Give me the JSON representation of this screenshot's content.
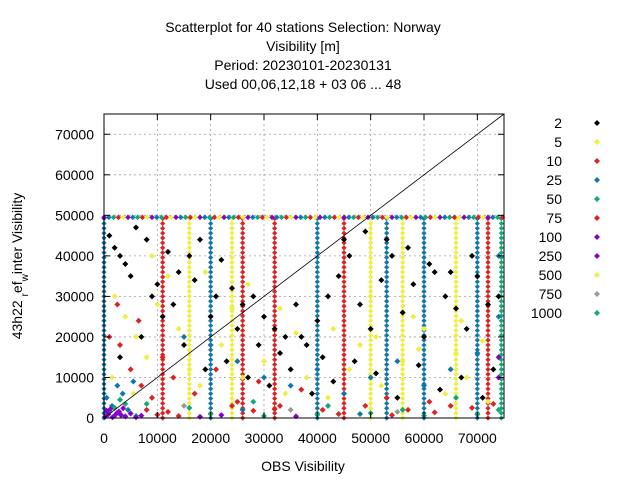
{
  "chart_data": {
    "type": "scatter",
    "title_lines": [
      "Scatterplot for   40 stations Selection: Norway",
      "Visibility [m]",
      "Period: 20230101-20230131",
      "Used  00,06,12,18  + 03 06 ... 48"
    ],
    "xlabel": "OBS Visibility",
    "ylabel": "43h22 ref_winter Visibility",
    "ylabel_parts": {
      "pre": "43h22 ",
      "sub1": "r",
      "mid": "ef",
      "sub2": "w",
      "post": "inter Visibility"
    },
    "xlim": [
      0,
      75000
    ],
    "ylim": [
      0,
      75000
    ],
    "xticks": [
      0,
      10000,
      20000,
      30000,
      40000,
      50000,
      60000,
      70000
    ],
    "yticks": [
      0,
      10000,
      20000,
      30000,
      40000,
      50000,
      60000,
      70000
    ],
    "grid": true,
    "diagonal": true,
    "legend_position": "right",
    "series": [
      {
        "name": "2",
        "color": "#000000"
      },
      {
        "name": "5",
        "color": "#eeee44"
      },
      {
        "name": "10",
        "color": "#dd2222"
      },
      {
        "name": "25",
        "color": "#1177aa"
      },
      {
        "name": "50",
        "color": "#11aa77"
      },
      {
        "name": "75",
        "color": "#dd2222"
      },
      {
        "name": "100",
        "color": "#8800cc"
      },
      {
        "name": "250",
        "color": "#8800cc"
      },
      {
        "name": "500",
        "color": "#eeee44"
      },
      {
        "name": "750",
        "color": "#999999"
      },
      {
        "name": "1000",
        "color": "#11aa77"
      }
    ],
    "points": {
      "2": [
        [
          1000,
          45000
        ],
        [
          2000,
          42000
        ],
        [
          3000,
          40000
        ],
        [
          4000,
          38000
        ],
        [
          5000,
          35000
        ],
        [
          6000,
          47000
        ],
        [
          8000,
          44000
        ],
        [
          9000,
          30000
        ],
        [
          12000,
          41000
        ],
        [
          14000,
          36000
        ],
        [
          16000,
          40000
        ],
        [
          18000,
          44000
        ],
        [
          20000,
          25000
        ],
        [
          22000,
          39000
        ],
        [
          24000,
          32000
        ],
        [
          26000,
          28000
        ],
        [
          28000,
          30000
        ],
        [
          30000,
          25000
        ],
        [
          32000,
          22000
        ],
        [
          34000,
          20000
        ],
        [
          36000,
          28000
        ],
        [
          38000,
          18000
        ],
        [
          40000,
          24000
        ],
        [
          42000,
          30000
        ],
        [
          44000,
          35000
        ],
        [
          46000,
          40000
        ],
        [
          48000,
          28000
        ],
        [
          50000,
          22000
        ],
        [
          52000,
          34000
        ],
        [
          54000,
          40000
        ],
        [
          56000,
          26000
        ],
        [
          58000,
          33000
        ],
        [
          60000,
          20000
        ],
        [
          62000,
          36000
        ],
        [
          64000,
          30000
        ],
        [
          66000,
          27000
        ],
        [
          68000,
          22000
        ],
        [
          70000,
          35000
        ],
        [
          72000,
          28000
        ],
        [
          74000,
          30000
        ],
        [
          3000,
          15000
        ],
        [
          7000,
          20000
        ],
        [
          11000,
          25000
        ],
        [
          15000,
          18000
        ],
        [
          19000,
          12000
        ],
        [
          23000,
          14000
        ],
        [
          27000,
          10000
        ],
        [
          31000,
          8000
        ],
        [
          35000,
          12000
        ],
        [
          39000,
          6000
        ],
        [
          43000,
          9000
        ],
        [
          47000,
          14000
        ],
        [
          51000,
          11000
        ],
        [
          55000,
          5000
        ],
        [
          59000,
          13000
        ],
        [
          63000,
          7000
        ],
        [
          67000,
          10000
        ],
        [
          71000,
          5000
        ],
        [
          73000,
          12000
        ],
        [
          45000,
          44000
        ],
        [
          49000,
          46000
        ],
        [
          53000,
          44000
        ],
        [
          57000,
          42000
        ],
        [
          61000,
          38000
        ],
        [
          65000,
          36000
        ],
        [
          69000,
          40000
        ],
        [
          10000,
          33000
        ],
        [
          13000,
          28000
        ],
        [
          17000,
          34000
        ],
        [
          21000,
          30000
        ],
        [
          25000,
          22000
        ],
        [
          29000,
          18000
        ],
        [
          33000,
          16000
        ],
        [
          37000,
          20000
        ],
        [
          41000,
          15000
        ]
      ],
      "5": [
        [
          2000,
          30000
        ],
        [
          4000,
          25000
        ],
        [
          6000,
          20000
        ],
        [
          8000,
          15000
        ],
        [
          10000,
          28000
        ],
        [
          14000,
          22000
        ],
        [
          16000,
          12000
        ],
        [
          18000,
          8000
        ],
        [
          22000,
          18000
        ],
        [
          26000,
          10000
        ],
        [
          30000,
          14000
        ],
        [
          34000,
          6000
        ],
        [
          38000,
          10000
        ],
        [
          42000,
          5000
        ],
        [
          46000,
          12000
        ],
        [
          50000,
          30000
        ],
        [
          52000,
          8000
        ],
        [
          56000,
          14000
        ],
        [
          60000,
          22000
        ],
        [
          64000,
          6000
        ],
        [
          68000,
          10000
        ],
        [
          72000,
          4000
        ],
        [
          12000,
          35000
        ],
        [
          24000,
          27000
        ],
        [
          36000,
          21000
        ],
        [
          48000,
          18000
        ],
        [
          58000,
          25000
        ],
        [
          66000,
          16000
        ],
        [
          1500,
          10000
        ],
        [
          5500,
          6000
        ]
      ],
      "10": [
        [
          1000,
          20000
        ],
        [
          3000,
          18000
        ],
        [
          5000,
          12000
        ],
        [
          7000,
          8000
        ],
        [
          9000,
          5000
        ],
        [
          11000,
          15000
        ],
        [
          13000,
          10000
        ],
        [
          17000,
          6000
        ],
        [
          21000,
          12000
        ],
        [
          25000,
          4000
        ],
        [
          29000,
          9000
        ],
        [
          33000,
          3000
        ],
        [
          37000,
          7000
        ],
        [
          41000,
          2000
        ],
        [
          45000,
          6000
        ],
        [
          49000,
          3000
        ],
        [
          53000,
          5000
        ],
        [
          57000,
          2000
        ],
        [
          61000,
          4000
        ],
        [
          65000,
          3000
        ],
        [
          69000,
          2500
        ],
        [
          73000,
          3500
        ],
        [
          2500,
          28000
        ],
        [
          6500,
          24000
        ]
      ],
      "25": [
        [
          500,
          5000
        ],
        [
          1500,
          3000
        ],
        [
          2500,
          8000
        ],
        [
          3500,
          6000
        ],
        [
          4500,
          2000
        ],
        [
          5500,
          9000
        ],
        [
          15000,
          20000
        ],
        [
          20000,
          18000
        ],
        [
          25000,
          14000
        ],
        [
          30000,
          10000
        ],
        [
          35000,
          8000
        ],
        [
          40000,
          12000
        ],
        [
          45000,
          6000
        ],
        [
          50000,
          10000
        ],
        [
          55000,
          14000
        ],
        [
          60000,
          8000
        ],
        [
          65000,
          12000
        ],
        [
          70000,
          16000
        ],
        [
          74000,
          25000
        ],
        [
          74000,
          40000
        ],
        [
          48000,
          1000
        ],
        [
          26000,
          2000
        ]
      ],
      "50": [
        [
          1000,
          1500
        ],
        [
          2000,
          2500
        ],
        [
          3000,
          1000
        ],
        [
          4000,
          3500
        ],
        [
          6000,
          500
        ],
        [
          20000,
          1000
        ],
        [
          30000,
          500
        ],
        [
          40000,
          800
        ],
        [
          50000,
          1200
        ],
        [
          60000,
          600
        ],
        [
          70000,
          900
        ],
        [
          74000,
          2000
        ],
        [
          74000,
          30000
        ]
      ],
      "75": [
        [
          8000,
          2000
        ],
        [
          10000,
          800
        ],
        [
          12000,
          1500
        ],
        [
          14000,
          500
        ],
        [
          24000,
          3000
        ],
        [
          28000,
          1800
        ],
        [
          32000,
          2200
        ],
        [
          44000,
          1000
        ],
        [
          54000,
          700
        ],
        [
          62000,
          1400
        ]
      ],
      "100": [
        [
          200,
          300
        ],
        [
          800,
          900
        ],
        [
          1600,
          200
        ],
        [
          2400,
          1200
        ],
        [
          3200,
          700
        ],
        [
          4000,
          400
        ],
        [
          5000,
          1100
        ],
        [
          6000,
          200
        ],
        [
          7000,
          600
        ],
        [
          74000,
          15000
        ],
        [
          74000,
          10000
        ]
      ],
      "250": [
        [
          500,
          1800
        ],
        [
          1200,
          2200
        ],
        [
          2000,
          600
        ],
        [
          2800,
          1600
        ],
        [
          3600,
          2400
        ],
        [
          18000,
          300
        ],
        [
          22000,
          700
        ],
        [
          36000,
          400
        ]
      ],
      "500": [
        [
          9000,
          40000
        ],
        [
          19000,
          36000
        ],
        [
          27000,
          33000
        ],
        [
          33000,
          27000
        ],
        [
          43000,
          22000
        ],
        [
          51000,
          20000
        ],
        [
          59000,
          17000
        ],
        [
          67000,
          24000
        ],
        [
          71000,
          19000
        ]
      ],
      "750": [
        [
          15000,
          3000
        ],
        [
          35000,
          2000
        ],
        [
          55000,
          1500
        ]
      ],
      "1000": [
        [
          3000,
          4500
        ],
        [
          8000,
          3500
        ],
        [
          16000,
          2500
        ],
        [
          28000,
          4000
        ],
        [
          42000,
          3000
        ],
        [
          56000,
          2000
        ],
        [
          66000,
          5000
        ]
      ]
    },
    "columns": [
      {
        "x": 0,
        "color": "#1177aa"
      },
      {
        "x": 11000,
        "color": "#dd2222"
      },
      {
        "x": 16000,
        "color": "#eeee44"
      },
      {
        "x": 20000,
        "color": "#1177aa"
      },
      {
        "x": 24000,
        "color": "#eeee44"
      },
      {
        "x": 26000,
        "color": "#dd2222"
      },
      {
        "x": 32000,
        "color": "#dd2222"
      },
      {
        "x": 40000,
        "color": "#1177aa"
      },
      {
        "x": 45000,
        "color": "#dd2222"
      },
      {
        "x": 50000,
        "color": "#eeee44"
      },
      {
        "x": 53000,
        "color": "#1177aa"
      },
      {
        "x": 56000,
        "color": "#eeee44"
      },
      {
        "x": 60000,
        "color": "#1177aa"
      },
      {
        "x": 66000,
        "color": "#eeee44"
      },
      {
        "x": 70000,
        "color": "#1177aa"
      },
      {
        "x": 72000,
        "color": "#dd2222"
      },
      {
        "x": 74500,
        "color": "#11aa77"
      }
    ],
    "cap_row": {
      "y": 49500,
      "colors": [
        "#8800cc",
        "#1177aa",
        "#11aa77",
        "#dd2222",
        "#eeee44"
      ]
    }
  }
}
